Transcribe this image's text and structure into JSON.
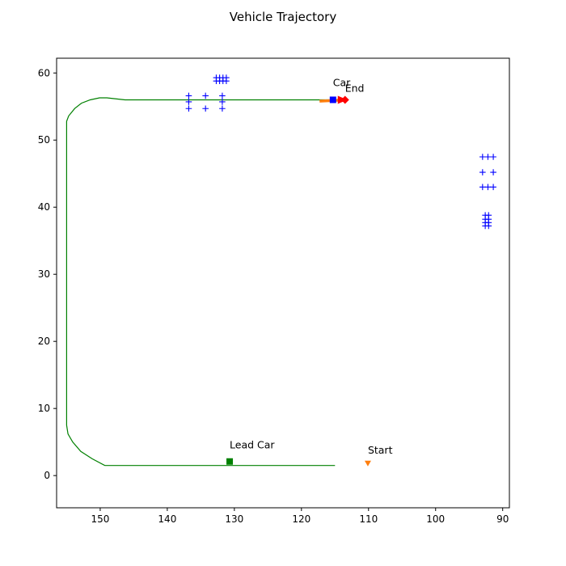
{
  "chart_data": {
    "type": "scatter",
    "title": "Vehicle Trajectory",
    "xlabel": "",
    "ylabel": "",
    "xlim": [
      156.5,
      89.0
    ],
    "ylim": [
      -4.8,
      62.2
    ],
    "x_inverted": true,
    "xticks": [
      150,
      140,
      130,
      120,
      110,
      100,
      90
    ],
    "yticks": [
      0,
      10,
      20,
      30,
      40,
      50,
      60
    ],
    "grid": false,
    "colors": {
      "trajectory": "#008000",
      "obstacles": "#0000ff",
      "start": "#ff7f0e",
      "end": "#ff0000",
      "car_heading": "#ff7f0e",
      "car": "#0000ff",
      "lead_car": "#008000"
    },
    "trajectory": [
      [
        115.0,
        1.5
      ],
      [
        120,
        1.5
      ],
      [
        130,
        1.5
      ],
      [
        140,
        1.5
      ],
      [
        149.3,
        1.5
      ],
      [
        151.2,
        2.5
      ],
      [
        152.9,
        3.6
      ],
      [
        154.1,
        5.0
      ],
      [
        154.8,
        6.2
      ],
      [
        155.0,
        7.5
      ],
      [
        155.0,
        10.0
      ],
      [
        155.0,
        20.0
      ],
      [
        155.0,
        30.0
      ],
      [
        155.0,
        40.0
      ],
      [
        155.0,
        50.0
      ],
      [
        155.0,
        52.8
      ],
      [
        154.7,
        53.6
      ],
      [
        153.8,
        54.7
      ],
      [
        152.8,
        55.5
      ],
      [
        151.5,
        56.0
      ],
      [
        150.1,
        56.3
      ],
      [
        149.0,
        56.3
      ],
      [
        146.3,
        56.0
      ],
      [
        140,
        56.0
      ],
      [
        130,
        56.0
      ],
      [
        120,
        56.0
      ],
      [
        114.5,
        56.0
      ]
    ],
    "obstacles": [
      [
        132.7,
        59.3
      ],
      [
        132.2,
        59.3
      ],
      [
        131.7,
        59.3
      ],
      [
        131.2,
        59.3
      ],
      [
        132.7,
        58.8
      ],
      [
        132.2,
        58.8
      ],
      [
        131.7,
        58.8
      ],
      [
        131.2,
        58.8
      ],
      [
        136.8,
        56.6
      ],
      [
        136.8,
        55.7
      ],
      [
        136.8,
        54.7
      ],
      [
        134.3,
        56.6
      ],
      [
        134.3,
        54.7
      ],
      [
        131.8,
        56.6
      ],
      [
        131.8,
        55.7
      ],
      [
        131.8,
        54.7
      ],
      [
        93.0,
        47.5
      ],
      [
        92.2,
        47.5
      ],
      [
        91.4,
        47.5
      ],
      [
        93.0,
        45.2
      ],
      [
        91.4,
        45.2
      ],
      [
        93.0,
        43.0
      ],
      [
        92.2,
        43.0
      ],
      [
        91.4,
        43.0
      ],
      [
        92.6,
        38.8
      ],
      [
        92.1,
        38.8
      ],
      [
        92.6,
        38.2
      ],
      [
        92.1,
        38.2
      ],
      [
        92.6,
        37.7
      ],
      [
        92.1,
        37.7
      ],
      [
        92.6,
        37.2
      ],
      [
        92.1,
        37.2
      ]
    ],
    "start_point": {
      "x": 110.1,
      "y": 1.8,
      "label": "Start"
    },
    "end_point": {
      "x": 113.5,
      "y": 56.0,
      "label": "End"
    },
    "car": {
      "x": 115.3,
      "y": 56.0,
      "label": "Car"
    },
    "car_heading": {
      "x": [
        117.3,
        113.5
      ],
      "y": [
        55.8,
        56.0
      ]
    },
    "lead_car": {
      "x": 130.7,
      "y": 2.1,
      "label": "Lead Car"
    }
  }
}
